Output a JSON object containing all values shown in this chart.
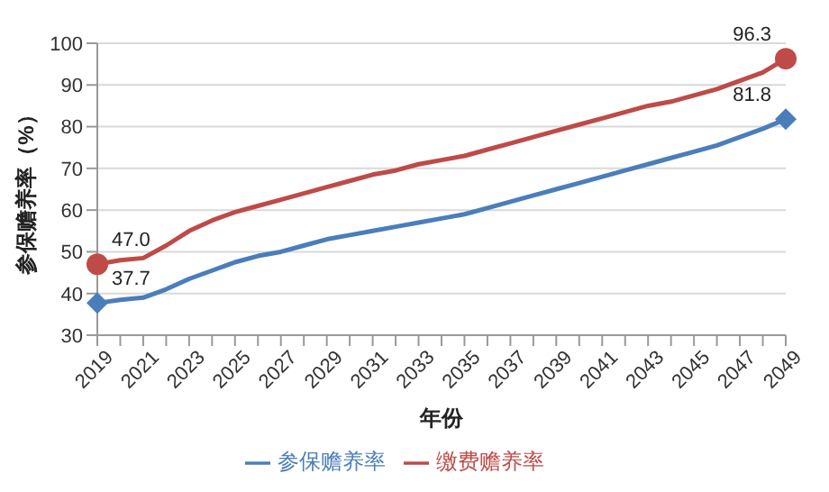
{
  "chart_data": {
    "type": "line",
    "xlabel": "年份",
    "ylabel": "参保赡养率（%）",
    "categories": [
      "2019",
      null,
      "2021",
      null,
      "2023",
      null,
      "2025",
      null,
      "2027",
      null,
      "2029",
      null,
      "2031",
      null,
      "2033",
      null,
      "2035",
      null,
      "2037",
      null,
      "2039",
      null,
      "2041",
      null,
      "2043",
      null,
      "2045",
      null,
      "2047",
      null,
      "2049"
    ],
    "series": [
      {
        "name": "参保赡养率",
        "color": "#4a7ebb",
        "values": [
          37.7,
          38.5,
          39,
          41,
          43.5,
          45.5,
          47.5,
          49,
          50,
          51.5,
          53,
          54,
          55,
          56,
          57,
          58,
          59,
          60.5,
          62,
          63.5,
          65,
          66.5,
          68,
          69.5,
          71,
          72.5,
          74,
          75.5,
          77.5,
          79.5,
          81.8
        ],
        "value_labels": [
          "37.7",
          null,
          null,
          null,
          null,
          null,
          null,
          null,
          null,
          null,
          null,
          null,
          null,
          null,
          null,
          null,
          null,
          null,
          null,
          null,
          null,
          null,
          null,
          null,
          null,
          null,
          null,
          null,
          null,
          null,
          "81.8"
        ]
      },
      {
        "name": "缴费赡养率",
        "color": "#be4b48",
        "values": [
          47.0,
          48,
          48.5,
          51.5,
          55,
          57.5,
          59.5,
          61,
          62.5,
          64,
          65.5,
          67,
          68.5,
          69.5,
          71,
          72,
          73,
          74.5,
          76,
          77.5,
          79,
          80.5,
          82,
          83.5,
          85,
          86,
          87.5,
          89,
          91,
          93,
          96.3
        ],
        "value_labels": [
          "47.0",
          null,
          null,
          null,
          null,
          null,
          null,
          null,
          null,
          null,
          null,
          null,
          null,
          null,
          null,
          null,
          null,
          null,
          null,
          null,
          null,
          null,
          null,
          null,
          null,
          null,
          null,
          null,
          null,
          null,
          "96.3"
        ]
      }
    ],
    "ylim": [
      30,
      100
    ],
    "yticks": [
      30,
      40,
      50,
      60,
      70,
      80,
      90,
      100
    ],
    "grid": "y",
    "legend": "bottom"
  }
}
